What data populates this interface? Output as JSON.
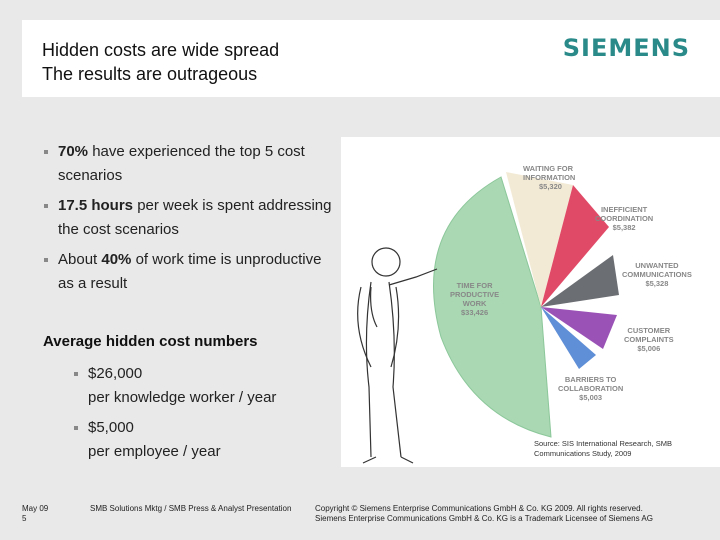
{
  "title": {
    "line1": "Hidden costs are wide spread",
    "line2": "The results are outrageous"
  },
  "logo": "SIEMENS",
  "bullets": [
    {
      "bold": "70%",
      "text": " have experienced the top 5 cost scenarios"
    },
    {
      "bold": "17.5 hours",
      "text": " per week is spent addressing the cost scenarios"
    },
    {
      "pre": "About ",
      "bold": "40%",
      "text": " of work time is unproductive as a result"
    }
  ],
  "section_title": "Average hidden cost numbers",
  "sub_bullets": [
    {
      "line1": "$26,000",
      "line2": "per knowledge worker / year"
    },
    {
      "line1": "$5,000",
      "line2": "per employee / year"
    }
  ],
  "figure": {
    "labels": [
      {
        "name": "WAITING FOR INFORMATION",
        "line1": "WAITING FOR",
        "line2": "INFORMATION",
        "value": "$5,320"
      },
      {
        "name": "INEFFICIENT COORDINATION",
        "line1": "INEFFICIENT",
        "line2": "COORDINATION",
        "value": "$5,382"
      },
      {
        "name": "UNWANTED COMMUNICATIONS",
        "line1": "UNWANTED",
        "line2": "COMMUNICATIONS",
        "value": "$5,328"
      },
      {
        "name": "CUSTOMER COMPLAINTS",
        "line1": "CUSTOMER",
        "line2": "COMPLAINTS",
        "value": "$5,006"
      },
      {
        "name": "BARRIERS TO COLLABORATION",
        "line1": "BARRIERS TO",
        "line2": "COLLABORATION",
        "value": "$5,003"
      },
      {
        "name": "TIME FOR PRODUCTIVE WORK",
        "line1": "TIME FOR",
        "line2": "PRODUCTIVE",
        "line3": "WORK",
        "value": "$33,426"
      }
    ],
    "colors": {
      "waiting": "#f3ead6",
      "coordination": "#e14a67",
      "unwanted": "#6b6e73",
      "complaints": "#9b52b6",
      "barriers": "#5f8fd6",
      "productive": "#a9d8b2"
    },
    "source_line1": "Source: SIS International Research, SMB",
    "source_line2": "Communications Study, 2009"
  },
  "footer": {
    "date": "May 09",
    "page": "5",
    "presentation": "SMB Solutions Mktg / SMB Press & Analyst Presentation",
    "copyright1": "Copyright © Siemens Enterprise Communications GmbH & Co. KG 2009. All rights reserved.",
    "copyright2": "Siemens Enterprise Communications GmbH & Co. KG is a Trademark Licensee of Siemens AG"
  }
}
